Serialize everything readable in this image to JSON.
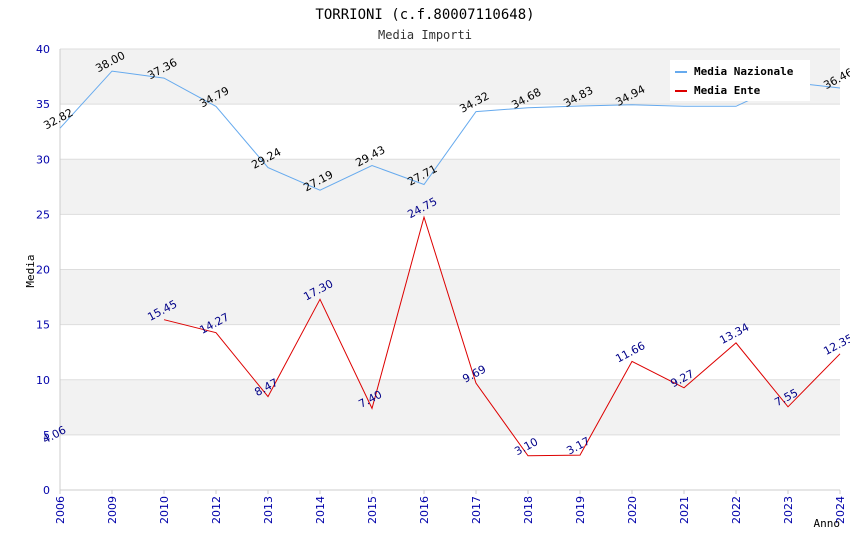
{
  "chart_data": {
    "type": "line",
    "title": "TORRIONI (c.f.80007110648)",
    "subtitle": "Media Importi",
    "xlabel": "Anno",
    "ylabel": "Media",
    "ylim": [
      0,
      40
    ],
    "yticks": [
      0,
      5,
      10,
      15,
      20,
      25,
      30,
      35,
      40
    ],
    "categories": [
      "2006",
      "2009",
      "2010",
      "2012",
      "2013",
      "2014",
      "2015",
      "2016",
      "2017",
      "2018",
      "2019",
      "2020",
      "2021",
      "2022",
      "2023",
      "2024"
    ],
    "legend_position": "top-right",
    "series": [
      {
        "name": "Media Nazionale",
        "color": "#66aaee",
        "values": [
          32.82,
          38.0,
          37.36,
          34.79,
          29.24,
          27.19,
          29.43,
          27.71,
          34.32,
          34.68,
          34.83,
          34.94,
          34.8,
          34.8,
          37.0,
          36.46
        ],
        "labels": [
          "32.82",
          "38.00",
          "37.36",
          "34.79",
          "29.24",
          "27.19",
          "29.43",
          "27.71",
          "34.32",
          "34.68",
          "34.83",
          "34.94",
          "",
          "",
          "",
          "36.46"
        ]
      },
      {
        "name": "Media Ente",
        "color": "#dd0000",
        "values": [
          null,
          null,
          15.45,
          14.27,
          8.47,
          17.3,
          7.4,
          24.75,
          9.69,
          3.1,
          3.17,
          11.66,
          9.27,
          13.34,
          7.55,
          12.35
        ],
        "labels": [
          "",
          "",
          "15.45",
          "14.27",
          "8.47",
          "17.30",
          "7.40",
          "24.75",
          "9.69",
          "3.10",
          "3.17",
          "11.66",
          "9.27",
          "13.34",
          "7.55",
          "12.35"
        ],
        "stray_label": "4.06"
      }
    ]
  }
}
